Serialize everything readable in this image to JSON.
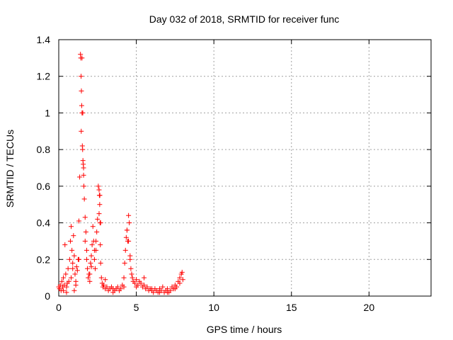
{
  "chart_data": {
    "type": "scatter",
    "title": "Day 032 of 2018, SRMTID for receiver func",
    "xlabel": "GPS time / hours",
    "ylabel": "SRMTID / TECUs",
    "xlim": [
      0,
      24
    ],
    "ylim": [
      0,
      1.4
    ],
    "xticks": [
      0,
      5,
      10,
      15,
      20
    ],
    "xtick_labels": [
      "0",
      "5",
      "10",
      "15",
      "20"
    ],
    "yticks": [
      0,
      0.2,
      0.4,
      0.6,
      0.8,
      1.0,
      1.2,
      1.4
    ],
    "ytick_labels": [
      "0",
      "0.2",
      "0.4",
      "0.6",
      "0.8",
      "1",
      "1.2",
      "1.4"
    ],
    "grid": true,
    "marker": "+",
    "marker_color": "#ff0000",
    "series": [
      {
        "name": "SRMTID",
        "x": [
          0.0,
          0.05,
          0.1,
          0.15,
          0.2,
          0.25,
          0.3,
          0.35,
          0.4,
          0.45,
          0.5,
          0.55,
          0.6,
          0.65,
          0.7,
          0.75,
          0.8,
          0.85,
          0.9,
          0.95,
          1.0,
          1.05,
          1.1,
          1.15,
          1.2,
          1.25,
          1.3,
          1.35,
          1.4,
          1.42,
          1.44,
          1.46,
          1.48,
          1.5,
          1.52,
          1.54,
          1.56,
          1.58,
          1.6,
          1.62,
          1.65,
          1.7,
          1.75,
          1.8,
          1.85,
          1.9,
          1.95,
          2.0,
          2.05,
          2.1,
          2.15,
          2.2,
          2.25,
          2.3,
          2.35,
          2.4,
          2.45,
          2.5,
          2.55,
          2.6,
          2.62,
          2.64,
          2.66,
          2.68,
          2.7,
          2.75,
          2.8,
          2.85,
          2.9,
          3.0,
          3.1,
          3.2,
          3.3,
          3.4,
          3.5,
          3.6,
          3.7,
          3.8,
          3.9,
          4.0,
          4.1,
          4.2,
          4.25,
          4.3,
          4.35,
          4.4,
          4.45,
          4.5,
          4.55,
          4.6,
          4.65,
          4.7,
          4.75,
          4.8,
          4.9,
          5.0,
          5.1,
          5.2,
          5.3,
          5.4,
          5.5,
          5.6,
          5.7,
          5.8,
          5.9,
          6.0,
          6.1,
          6.2,
          6.3,
          6.4,
          6.5,
          6.6,
          6.7,
          6.8,
          6.9,
          7.0,
          7.1,
          7.2,
          7.3,
          7.4,
          7.5,
          7.6,
          7.7,
          7.8,
          7.9,
          8.0,
          0.3,
          0.5,
          0.8,
          0.9,
          1.0,
          1.1,
          1.3,
          1.45,
          1.5,
          1.55,
          1.6,
          1.7,
          1.8,
          2.0,
          2.1,
          2.3,
          2.4,
          2.6,
          2.65,
          2.7,
          3.0,
          3.5,
          4.2,
          4.4,
          4.5,
          4.6,
          5.0,
          5.5,
          6.0,
          6.5,
          7.0,
          7.5,
          7.8,
          7.95
        ],
        "y": [
          0.05,
          0.04,
          0.06,
          0.03,
          0.08,
          0.05,
          0.1,
          0.06,
          0.28,
          0.12,
          0.05,
          0.07,
          0.15,
          0.08,
          0.2,
          0.3,
          0.38,
          0.25,
          0.18,
          0.33,
          0.22,
          0.12,
          0.08,
          0.16,
          0.14,
          0.2,
          0.41,
          0.65,
          1.32,
          1.3,
          1.2,
          1.12,
          1.04,
          1.0,
          0.82,
          0.8,
          0.74,
          0.72,
          0.66,
          0.6,
          0.53,
          0.43,
          0.35,
          0.25,
          0.15,
          0.1,
          0.12,
          0.08,
          0.18,
          0.22,
          0.28,
          0.38,
          0.3,
          0.2,
          0.15,
          0.25,
          0.35,
          0.42,
          0.6,
          0.58,
          0.55,
          0.5,
          0.4,
          0.28,
          0.18,
          0.1,
          0.07,
          0.05,
          0.06,
          0.04,
          0.05,
          0.03,
          0.04,
          0.05,
          0.04,
          0.03,
          0.04,
          0.05,
          0.03,
          0.04,
          0.06,
          0.1,
          0.18,
          0.25,
          0.32,
          0.36,
          0.3,
          0.44,
          0.4,
          0.2,
          0.15,
          0.12,
          0.1,
          0.08,
          0.07,
          0.09,
          0.06,
          0.08,
          0.07,
          0.05,
          0.06,
          0.04,
          0.05,
          0.03,
          0.04,
          0.03,
          0.02,
          0.04,
          0.03,
          0.02,
          0.04,
          0.03,
          0.05,
          0.02,
          0.03,
          0.04,
          0.02,
          0.03,
          0.05,
          0.04,
          0.06,
          0.05,
          0.08,
          0.1,
          0.12,
          0.09,
          0.03,
          0.02,
          0.1,
          0.15,
          0.03,
          0.06,
          0.2,
          0.9,
          1.3,
          1.0,
          0.7,
          0.3,
          0.2,
          0.12,
          0.16,
          0.25,
          0.3,
          0.45,
          0.55,
          0.4,
          0.09,
          0.02,
          0.05,
          0.36,
          0.3,
          0.22,
          0.05,
          0.1,
          0.04,
          0.02,
          0.02,
          0.04,
          0.07,
          0.13
        ]
      }
    ]
  }
}
